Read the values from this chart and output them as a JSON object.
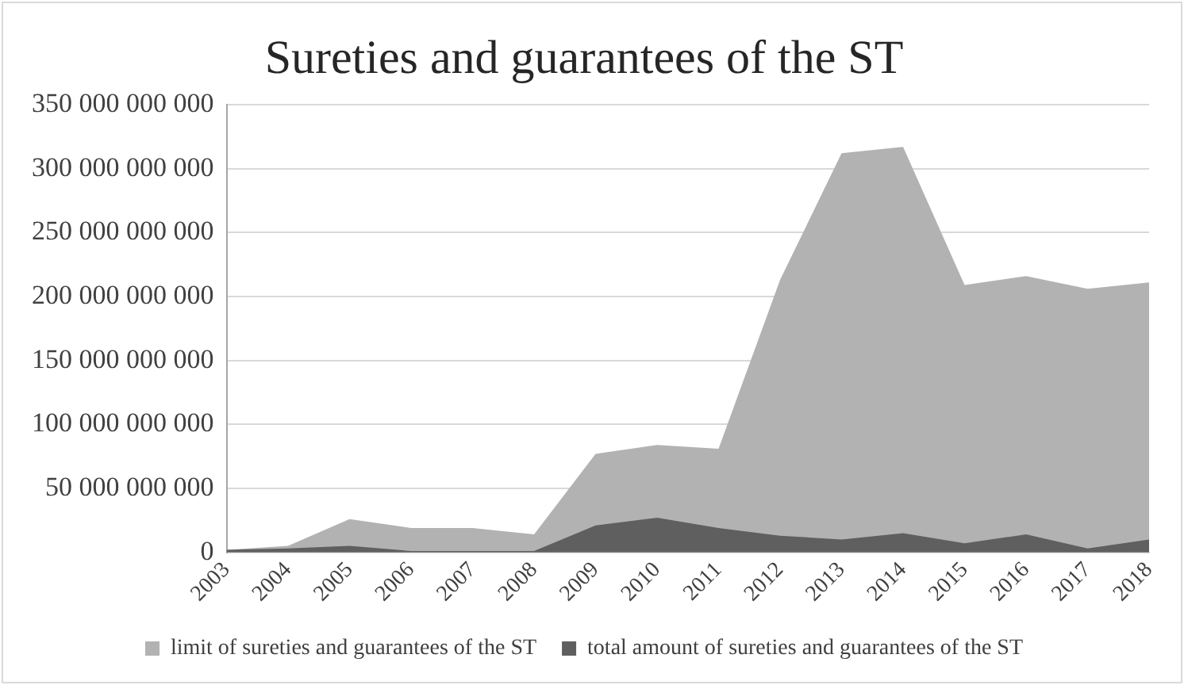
{
  "chart_data": {
    "type": "area",
    "title": "Sureties and guarantees of the ST",
    "categories": [
      "2003",
      "2004",
      "2005",
      "2006",
      "2007",
      "2008",
      "2009",
      "2010",
      "2011",
      "2012",
      "2013",
      "2014",
      "2015",
      "2016",
      "2017",
      "2018"
    ],
    "series": [
      {
        "name": "limit of sureties and guarantees of the ST",
        "color": "#b2b2b2",
        "values": [
          2000000000,
          5000000000,
          26000000000,
          19000000000,
          19000000000,
          14000000000,
          77000000000,
          84000000000,
          81000000000,
          213000000000,
          312000000000,
          317000000000,
          209000000000,
          216000000000,
          206000000000,
          211000000000
        ]
      },
      {
        "name": "total amount of sureties and guarantees of the ST",
        "color": "#5f5f5f",
        "values": [
          2000000000,
          3000000000,
          5000000000,
          1000000000,
          1000000000,
          1000000000,
          21000000000,
          27000000000,
          19000000000,
          13000000000,
          10000000000,
          15000000000,
          7000000000,
          14000000000,
          3000000000,
          10000000000
        ]
      }
    ],
    "ylim": [
      0,
      350000000000
    ],
    "yticks": [
      0,
      50000000000,
      100000000000,
      150000000000,
      200000000000,
      250000000000,
      300000000000,
      350000000000
    ],
    "grid": "y",
    "legend": "bottom"
  }
}
